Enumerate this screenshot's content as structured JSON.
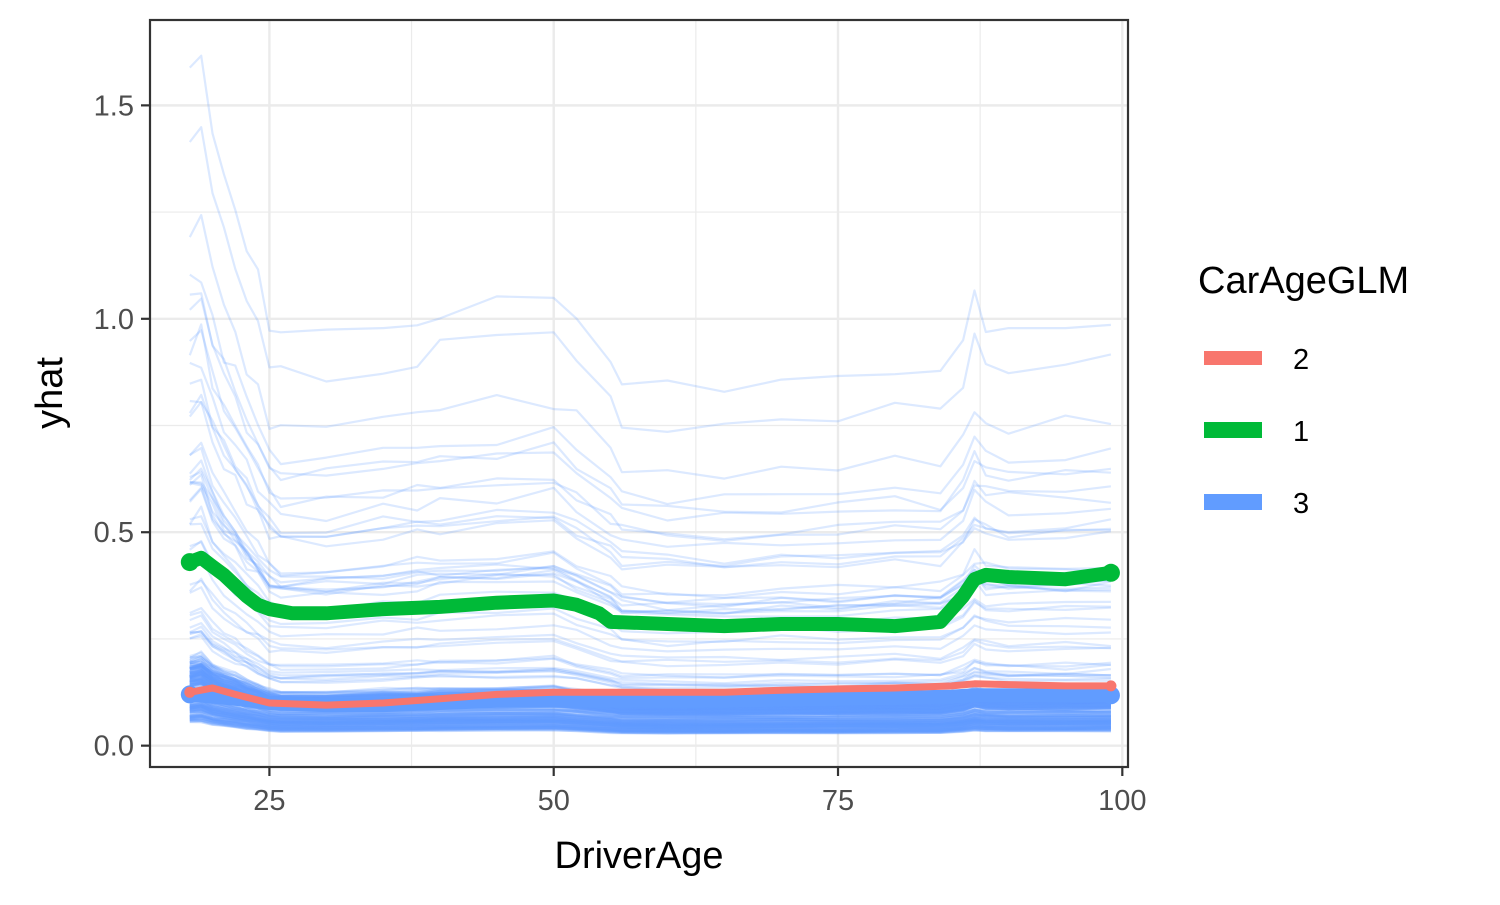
{
  "chart_data": {
    "type": "line",
    "title": "",
    "xlabel": "DriverAge",
    "ylabel": "yhat",
    "xlim": [
      14.5,
      100.5
    ],
    "ylim": [
      -0.05,
      1.7
    ],
    "x_ticks": [
      25,
      50,
      75,
      100
    ],
    "x_tick_labels": [
      "25",
      "50",
      "75",
      "100"
    ],
    "y_ticks": [
      0.0,
      0.5,
      1.0,
      1.5
    ],
    "y_tick_labels": [
      "0.0",
      "0.5",
      "1.0",
      "1.5"
    ],
    "grid": true,
    "legend": {
      "title": "CarAgeGLM",
      "position": "right",
      "entries": [
        {
          "label": "2",
          "color": "#F8766D"
        },
        {
          "label": "1",
          "color": "#00BA38"
        },
        {
          "label": "3",
          "color": "#619CFF"
        }
      ]
    },
    "series": [
      {
        "name": "2",
        "color": "#F8766D",
        "kind": "pdp",
        "x": [
          18,
          20,
          22,
          25,
          30,
          35,
          40,
          45,
          50,
          55,
          60,
          65,
          70,
          75,
          80,
          85,
          87,
          90,
          95,
          99
        ],
        "values": [
          0.125,
          0.135,
          0.12,
          0.1,
          0.095,
          0.1,
          0.11,
          0.12,
          0.125,
          0.125,
          0.125,
          0.125,
          0.13,
          0.133,
          0.135,
          0.14,
          0.145,
          0.143,
          0.14,
          0.14
        ]
      },
      {
        "name": "1",
        "color": "#00BA38",
        "kind": "pdp",
        "x": [
          18,
          19,
          20,
          21,
          22,
          23,
          24,
          25,
          27,
          30,
          35,
          40,
          45,
          50,
          52,
          54,
          55,
          60,
          65,
          70,
          75,
          80,
          84,
          86,
          87,
          88,
          90,
          95,
          99
        ],
        "values": [
          0.43,
          0.44,
          0.42,
          0.4,
          0.375,
          0.35,
          0.33,
          0.32,
          0.31,
          0.31,
          0.32,
          0.325,
          0.335,
          0.34,
          0.33,
          0.31,
          0.29,
          0.285,
          0.28,
          0.285,
          0.285,
          0.28,
          0.29,
          0.35,
          0.39,
          0.4,
          0.395,
          0.39,
          0.405
        ]
      },
      {
        "name": "3",
        "color": "#619CFF",
        "kind": "pdp",
        "x": [
          18,
          20,
          22,
          25,
          30,
          35,
          40,
          45,
          50,
          55,
          60,
          65,
          70,
          75,
          80,
          85,
          87,
          90,
          95,
          99
        ],
        "values": [
          0.12,
          0.115,
          0.11,
          0.1,
          0.095,
          0.095,
          0.1,
          0.105,
          0.105,
          0.105,
          0.105,
          0.105,
          0.108,
          0.11,
          0.112,
          0.115,
          0.118,
          0.118,
          0.118,
          0.118
        ]
      }
    ],
    "ice": {
      "color": "#619CFF",
      "count": 160,
      "x": [
        18,
        19,
        20,
        21,
        22,
        23,
        24,
        25,
        26,
        30,
        35,
        38,
        40,
        45,
        50,
        52,
        55,
        56,
        60,
        65,
        70,
        75,
        80,
        84,
        86,
        87,
        88,
        90,
        95,
        99
      ],
      "shape": [
        1.0,
        1.03,
        0.92,
        0.85,
        0.8,
        0.74,
        0.69,
        0.63,
        0.61,
        0.61,
        0.63,
        0.64,
        0.65,
        0.66,
        0.67,
        0.63,
        0.57,
        0.54,
        0.53,
        0.53,
        0.54,
        0.54,
        0.55,
        0.55,
        0.6,
        0.66,
        0.63,
        0.62,
        0.62,
        0.63
      ],
      "level_range": [
        0.05,
        1.6
      ]
    }
  }
}
